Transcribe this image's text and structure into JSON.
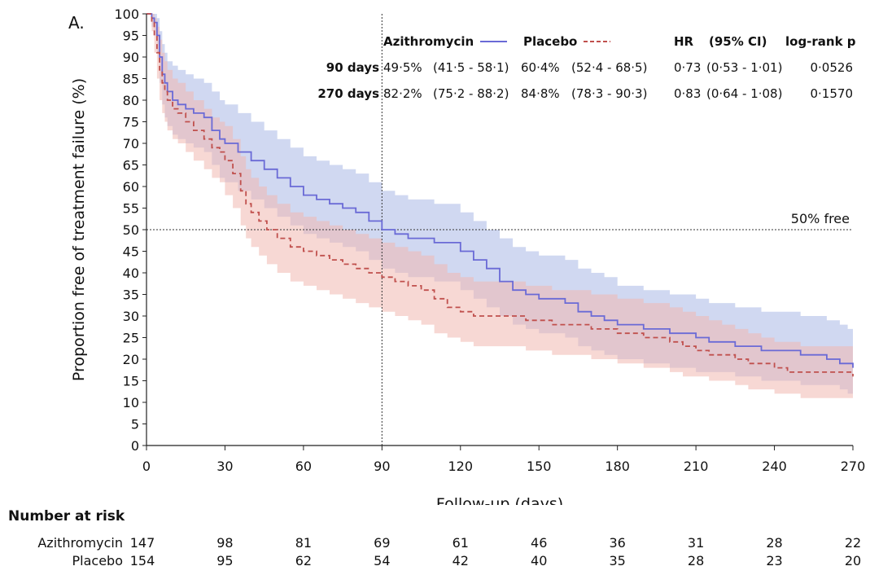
{
  "panel_label": "A.",
  "chart_data": {
    "type": "line",
    "title": "",
    "xlabel": "Follow-up (days)",
    "ylabel": "Proportion free of treatment failure (%)",
    "xlim": [
      0,
      270
    ],
    "ylim": [
      0,
      100
    ],
    "x_ticks": [
      0,
      30,
      60,
      90,
      120,
      150,
      180,
      210,
      240,
      270
    ],
    "y_ticks": [
      0,
      5,
      10,
      15,
      20,
      25,
      30,
      35,
      40,
      45,
      50,
      55,
      60,
      65,
      70,
      75,
      80,
      85,
      90,
      95,
      100
    ],
    "grid": false,
    "reference_lines": [
      {
        "axis": "y",
        "value": 50,
        "label": "50% free",
        "style": "dotted"
      },
      {
        "axis": "x",
        "value": 90,
        "label": "",
        "style": "dotted"
      }
    ],
    "legend_position": "top-right",
    "series": [
      {
        "name": "Azithromycin",
        "color": "#6a6ad6",
        "band_color": "#aab8e6",
        "style": "solid",
        "x": [
          0,
          2,
          3,
          4,
          5,
          6,
          7,
          8,
          10,
          12,
          15,
          18,
          22,
          25,
          28,
          30,
          35,
          40,
          45,
          50,
          55,
          60,
          65,
          70,
          75,
          80,
          85,
          90,
          95,
          100,
          105,
          110,
          115,
          120,
          125,
          130,
          135,
          140,
          145,
          150,
          155,
          160,
          165,
          170,
          175,
          180,
          185,
          190,
          195,
          200,
          205,
          210,
          215,
          220,
          225,
          230,
          235,
          240,
          245,
          250,
          255,
          260,
          265,
          268,
          270
        ],
        "y": [
          100,
          99,
          98,
          95,
          90,
          86,
          84,
          82,
          80,
          79,
          78,
          77,
          76,
          73,
          71,
          70,
          68,
          66,
          64,
          62,
          60,
          58,
          57,
          56,
          55,
          54,
          52,
          50,
          49,
          48,
          48,
          47,
          47,
          45,
          43,
          41,
          38,
          36,
          35,
          34,
          34,
          33,
          31,
          30,
          29,
          28,
          28,
          27,
          27,
          26,
          26,
          25,
          24,
          24,
          23,
          23,
          22,
          22,
          22,
          21,
          21,
          20,
          19,
          19,
          18
        ],
        "ci_upper": [
          100,
          100,
          100,
          99,
          96,
          93,
          91,
          89,
          88,
          87,
          86,
          85,
          84,
          82,
          80,
          79,
          77,
          75,
          73,
          71,
          69,
          67,
          66,
          65,
          64,
          63,
          61,
          59,
          58,
          57,
          57,
          56,
          56,
          54,
          52,
          50,
          48,
          46,
          45,
          44,
          44,
          43,
          41,
          40,
          39,
          37,
          37,
          36,
          36,
          35,
          35,
          34,
          33,
          33,
          32,
          32,
          31,
          31,
          31,
          30,
          30,
          29,
          28,
          27,
          26
        ],
        "ci_lower": [
          100,
          97,
          95,
          91,
          84,
          79,
          76,
          74,
          72,
          71,
          70,
          69,
          68,
          65,
          62,
          61,
          59,
          57,
          55,
          53,
          51,
          49,
          48,
          47,
          46,
          45,
          43,
          41,
          40,
          39,
          39,
          38,
          38,
          36,
          34,
          32,
          30,
          28,
          27,
          26,
          26,
          25,
          23,
          22,
          21,
          20,
          20,
          19,
          19,
          18,
          18,
          17,
          17,
          17,
          16,
          16,
          15,
          15,
          15,
          14,
          14,
          14,
          13,
          12,
          11
        ]
      },
      {
        "name": "Placebo",
        "color": "#c0504d",
        "band_color": "#f0b8b0",
        "style": "dashed",
        "x": [
          0,
          2,
          3,
          4,
          5,
          6,
          7,
          8,
          10,
          12,
          15,
          18,
          22,
          25,
          28,
          30,
          33,
          36,
          38,
          40,
          43,
          46,
          50,
          55,
          60,
          65,
          70,
          75,
          80,
          85,
          90,
          95,
          100,
          105,
          110,
          115,
          120,
          125,
          130,
          135,
          140,
          145,
          150,
          155,
          160,
          165,
          170,
          175,
          180,
          185,
          190,
          195,
          200,
          205,
          210,
          215,
          220,
          225,
          230,
          235,
          240,
          245,
          250,
          255,
          260,
          265,
          270
        ],
        "y": [
          100,
          98,
          95,
          91,
          87,
          84,
          82,
          80,
          78,
          77,
          75,
          73,
          71,
          69,
          68,
          66,
          63,
          59,
          56,
          54,
          52,
          50,
          48,
          46,
          45,
          44,
          43,
          42,
          41,
          40,
          39,
          38,
          37,
          36,
          34,
          32,
          31,
          30,
          30,
          30,
          30,
          29,
          29,
          28,
          28,
          28,
          27,
          27,
          26,
          26,
          25,
          25,
          24,
          23,
          22,
          21,
          21,
          20,
          19,
          19,
          18,
          17,
          17,
          17,
          17,
          17,
          16
        ],
        "ci_upper": [
          100,
          100,
          99,
          97,
          94,
          91,
          89,
          87,
          85,
          84,
          82,
          80,
          78,
          76,
          75,
          74,
          71,
          67,
          64,
          62,
          60,
          58,
          56,
          54,
          53,
          52,
          51,
          50,
          49,
          48,
          47,
          46,
          45,
          44,
          42,
          40,
          39,
          38,
          38,
          38,
          38,
          37,
          37,
          36,
          36,
          36,
          35,
          35,
          34,
          34,
          33,
          33,
          32,
          31,
          30,
          29,
          28,
          27,
          26,
          25,
          24,
          24,
          23,
          23,
          23,
          23,
          22
        ],
        "ci_lower": [
          100,
          96,
          91,
          85,
          80,
          77,
          75,
          73,
          71,
          70,
          68,
          66,
          64,
          62,
          61,
          58,
          55,
          51,
          48,
          46,
          44,
          42,
          40,
          38,
          37,
          36,
          35,
          34,
          33,
          32,
          31,
          30,
          29,
          28,
          26,
          25,
          24,
          23,
          23,
          23,
          23,
          22,
          22,
          21,
          21,
          21,
          20,
          20,
          19,
          19,
          18,
          18,
          17,
          16,
          16,
          15,
          15,
          14,
          13,
          13,
          12,
          12,
          11,
          11,
          11,
          11,
          10
        ]
      }
    ],
    "summary_table": {
      "headers": [
        "Azithromycin",
        "Placebo",
        "HR",
        "(95% CI)",
        "log-rank p"
      ],
      "rows": [
        {
          "label": "90 days",
          "azi": "49·5%",
          "azi_ci": "(41·5 - 58·1)",
          "plc": "60·4%",
          "plc_ci": "(52·4 - 68·5)",
          "hr": "0·73",
          "hr_ci": "(0·53 - 1·01)",
          "p": "0·0526"
        },
        {
          "label": "270 days",
          "azi": "82·2%",
          "azi_ci": "(75·2 - 88·2)",
          "plc": "84·8%",
          "plc_ci": "(78·3 - 90·3)",
          "hr": "0·83",
          "hr_ci": "(0·64 - 1·08)",
          "p": "0·1570"
        }
      ]
    }
  },
  "risk_table": {
    "title": "Number at risk",
    "days": [
      0,
      30,
      60,
      90,
      120,
      150,
      180,
      210,
      240,
      270
    ],
    "rows": [
      {
        "name": "Azithromycin",
        "values": [
          "147",
          "98",
          "81",
          "69",
          "61",
          "46",
          "36",
          "31",
          "28",
          "22"
        ]
      },
      {
        "name": "Placebo",
        "values": [
          "154",
          "95",
          "62",
          "54",
          "42",
          "40",
          "35",
          "28",
          "23",
          "20"
        ]
      }
    ]
  }
}
